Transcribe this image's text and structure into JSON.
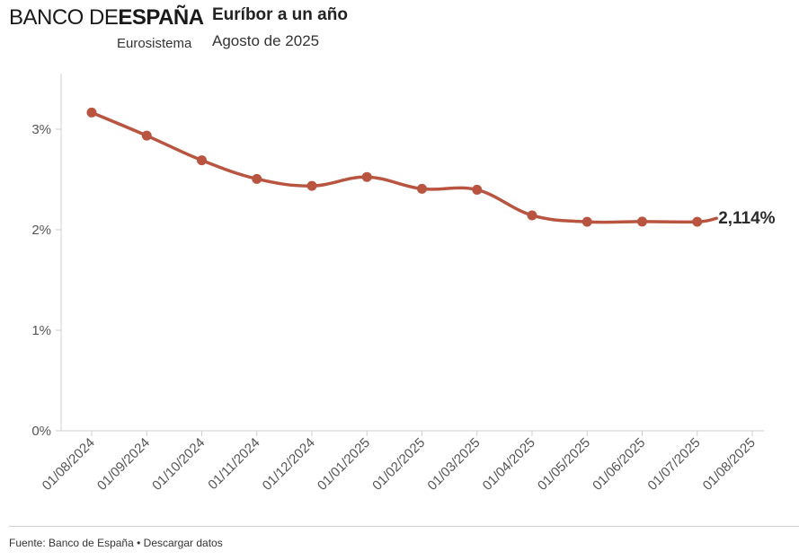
{
  "header": {
    "logo_light": "BANCO DE",
    "logo_bold": "ESPAÑA",
    "logo_sub": "Eurosistema",
    "title": "Euríbor a un año",
    "subtitle": "Agosto de 2025"
  },
  "footer": {
    "source_text": "Fuente: Banco de España",
    "separator": " • ",
    "download_link": "Descargar datos"
  },
  "colors": {
    "line": "#b85440",
    "axis": "#cfcfcf",
    "text": "#555555"
  },
  "chart_data": {
    "type": "line",
    "title": "Euríbor a un año",
    "subtitle": "Agosto de 2025",
    "xlabel": "",
    "ylabel": "",
    "ylim": [
      0,
      3.5
    ],
    "y_ticks": [
      0,
      1,
      2,
      3
    ],
    "y_tick_labels": [
      "0%",
      "1%",
      "2%",
      "3%"
    ],
    "categories": [
      "01/08/2024",
      "01/09/2024",
      "01/10/2024",
      "01/11/2024",
      "01/12/2024",
      "01/01/2025",
      "01/02/2025",
      "01/03/2025",
      "01/04/2025",
      "01/05/2025",
      "01/06/2025",
      "01/07/2025",
      "01/08/2025"
    ],
    "series": [
      {
        "name": "Euríbor a un año",
        "x": [
          0,
          1,
          2,
          3,
          4,
          5,
          6,
          7,
          8,
          9,
          10,
          11
        ],
        "values": [
          3.166,
          2.936,
          2.691,
          2.506,
          2.436,
          2.525,
          2.407,
          2.398,
          2.143,
          2.079,
          2.081,
          2.079
        ],
        "end_x": 11.35,
        "end_value": 2.114,
        "end_label": "2,114%"
      }
    ],
    "grid": false,
    "legend": "none"
  }
}
